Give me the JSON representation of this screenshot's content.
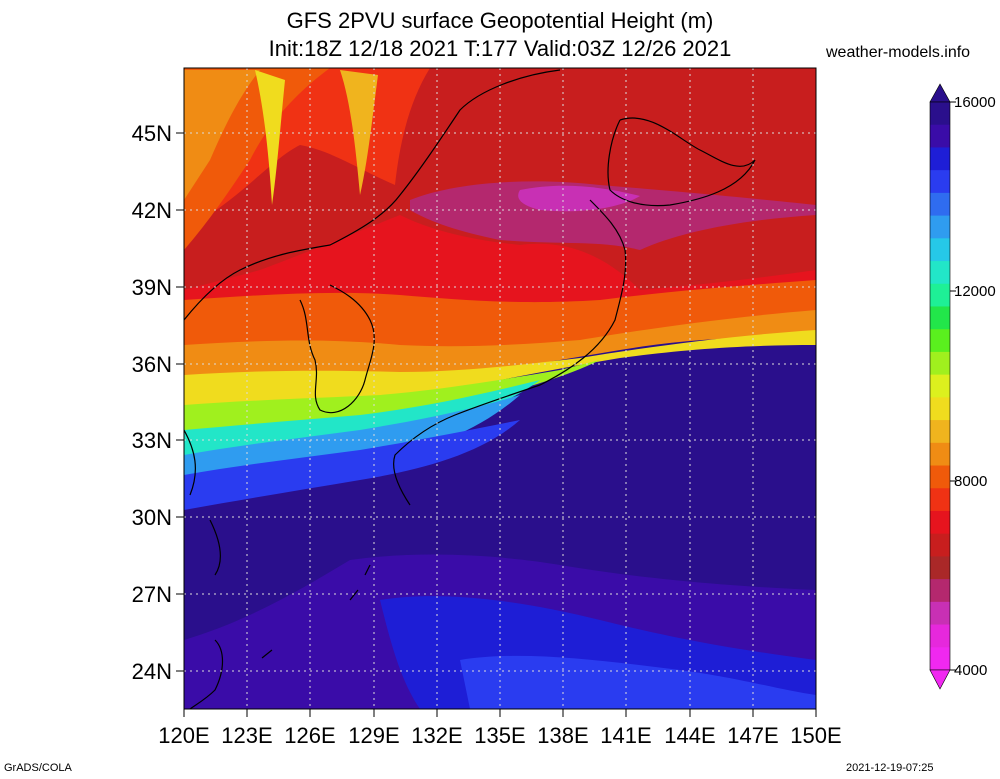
{
  "header": {
    "title_line1": "GFS 2PVU surface Geopotential Height (m)",
    "title_line2": "Init:18Z 12/18 2021 T:177 Valid:03Z 12/26 2021",
    "credit": "weather-models.info"
  },
  "footer": {
    "left": "GrADS/COLA",
    "right": "2021-12-19-07:25"
  },
  "map": {
    "region": "Japan / East Asia",
    "lon_labels": [
      "120E",
      "123E",
      "126E",
      "129E",
      "132E",
      "135E",
      "138E",
      "141E",
      "144E",
      "147E",
      "150E"
    ],
    "lat_labels": [
      "45N",
      "42N",
      "39N",
      "36N",
      "33N",
      "30N",
      "27N",
      "24N"
    ],
    "lon_range": [
      120,
      150
    ],
    "lat_range": [
      22.5,
      47.5
    ],
    "grid": true
  },
  "colorbar": {
    "labels": [
      "16000",
      "12000",
      "8000",
      "4000"
    ],
    "min": 4000,
    "max": 16000,
    "colors_top_to_bottom": [
      "#2a0f8c",
      "#3a0ca8",
      "#1e1ed6",
      "#2a3cf0",
      "#2f6cf0",
      "#2f9cf0",
      "#26c8e8",
      "#22e6c8",
      "#1ef096",
      "#22e64a",
      "#5af01e",
      "#a0f01e",
      "#dcf01e",
      "#f0dc1e",
      "#f0b41e",
      "#f08c14",
      "#f05a0a",
      "#f03214",
      "#e6141e",
      "#c81e1e",
      "#aa2828",
      "#b4286e",
      "#c830b4",
      "#e628dc",
      "#f028f0"
    ]
  }
}
